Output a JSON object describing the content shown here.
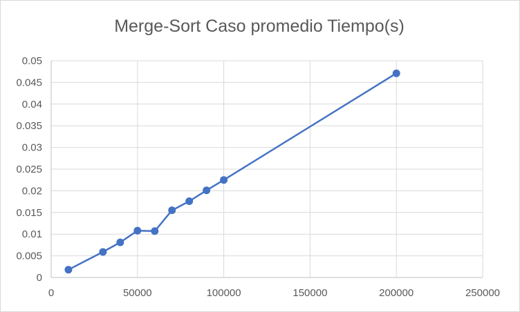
{
  "chart_data": {
    "type": "scatter",
    "title": "Merge-Sort Caso promedio Tiempo(s)",
    "xlabel": "",
    "ylabel": "",
    "xlim": [
      0,
      250000
    ],
    "ylim": [
      0,
      0.05
    ],
    "x_ticks": [
      0,
      50000,
      100000,
      150000,
      200000,
      250000
    ],
    "x_tick_labels": [
      "0",
      "50000",
      "100000",
      "150000",
      "200000",
      "250000"
    ],
    "y_ticks": [
      0,
      0.005,
      0.01,
      0.015,
      0.02,
      0.025,
      0.03,
      0.035,
      0.04,
      0.045,
      0.05
    ],
    "y_tick_labels": [
      "0",
      "0.005",
      "0.01",
      "0.015",
      "0.02",
      "0.025",
      "0.03",
      "0.035",
      "0.04",
      "0.045",
      "0.05"
    ],
    "grid": true,
    "legend": "none",
    "series": [
      {
        "color": "#4472c4",
        "markers": true,
        "lines": true,
        "x": [
          10000,
          30000,
          40000,
          50000,
          60000,
          70000,
          80000,
          90000,
          100000,
          200000
        ],
        "y": [
          0.0018,
          0.0059,
          0.0081,
          0.0108,
          0.0107,
          0.0155,
          0.0176,
          0.0201,
          0.0225,
          0.0471
        ]
      }
    ]
  },
  "colors": {
    "grid": "#d9d9d9",
    "axis": "#bfbfbf",
    "text": "#595959"
  }
}
